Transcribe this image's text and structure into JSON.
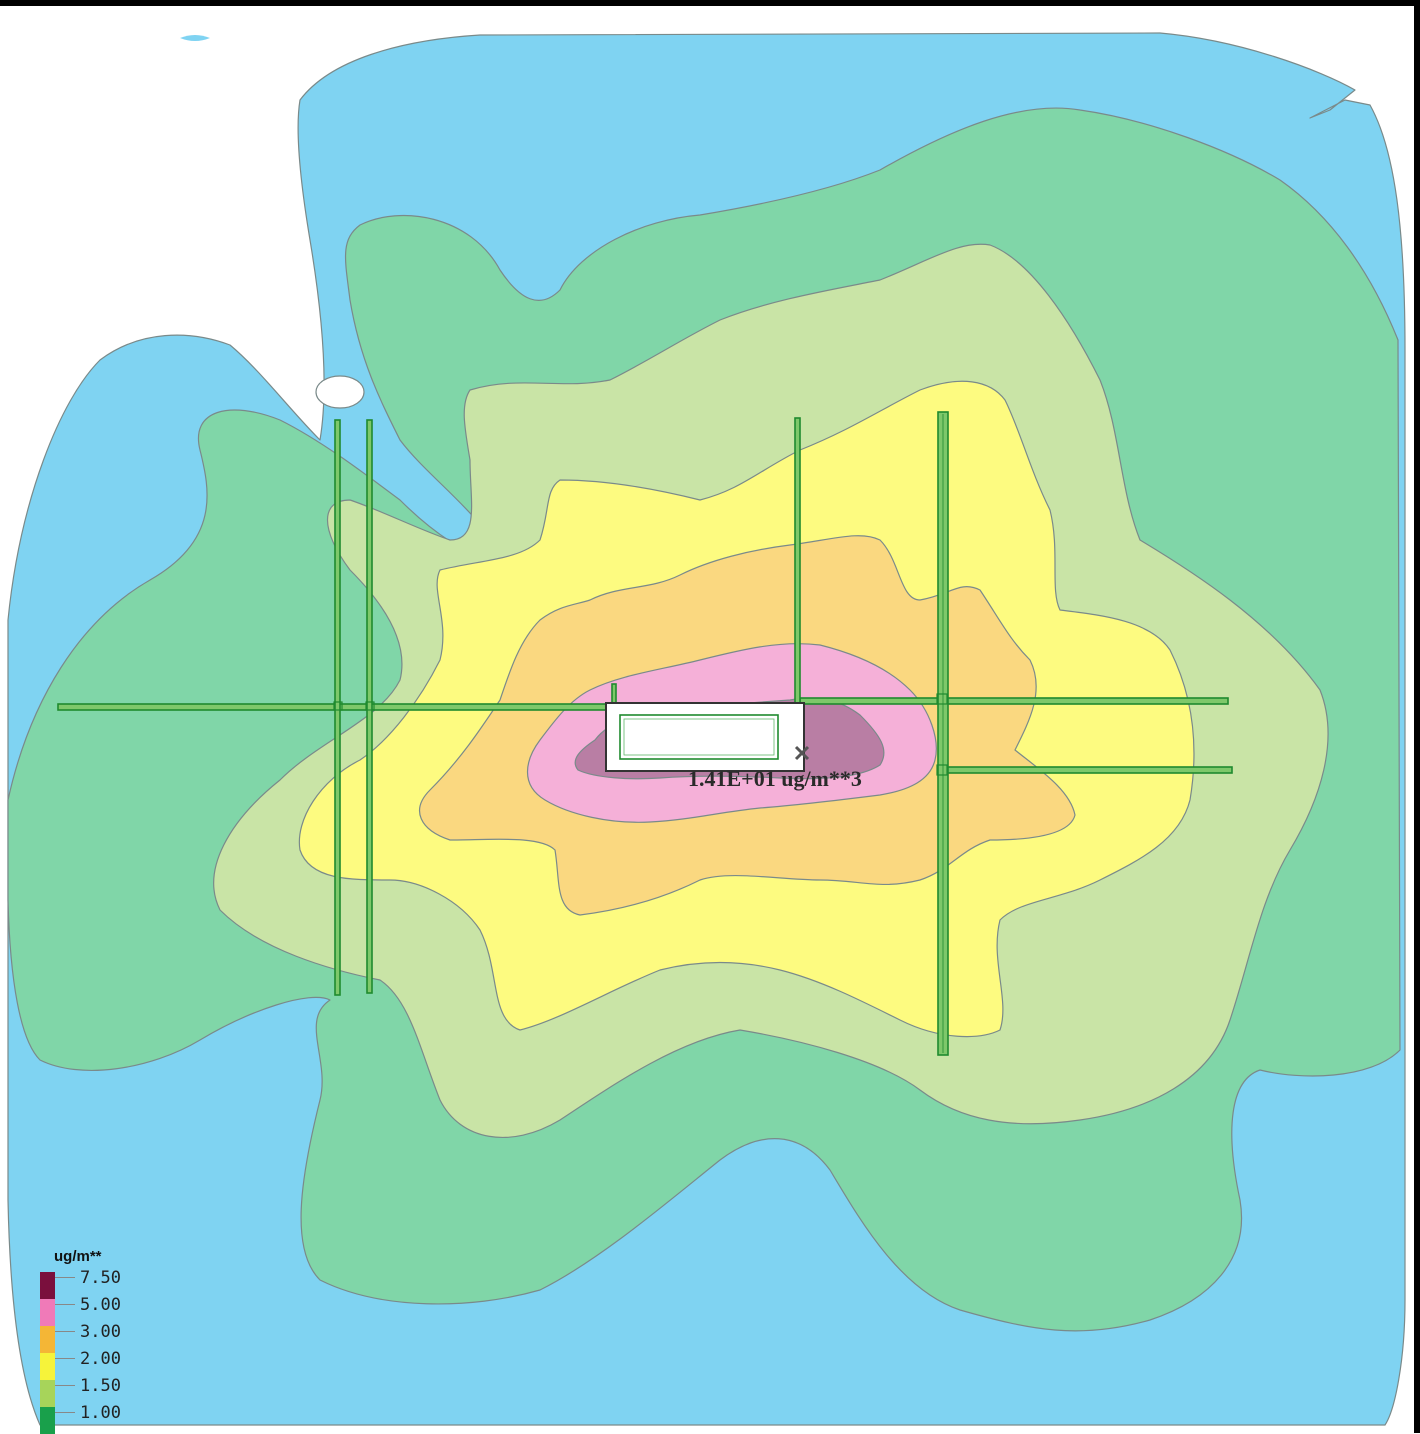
{
  "peak_label": "1.41E+01 ug/m**3",
  "legend": {
    "title": "ug/m**",
    "entries": [
      {
        "value": "7.50",
        "color": "#7a0f3d"
      },
      {
        "value": "5.00",
        "color": "#f07ab8"
      },
      {
        "value": "3.00",
        "color": "#f4b636"
      },
      {
        "value": "2.00",
        "color": "#f6f33a"
      },
      {
        "value": "1.50",
        "color": "#a7d45a"
      },
      {
        "value": "1.00",
        "color": "#19a04b"
      }
    ]
  },
  "fill_colors": {
    "lt_1": "#7fd3f2",
    "band_1_00": "#80d6a8",
    "band_1_50": "#c9e4a6",
    "band_2_00": "#fdfb80",
    "band_3_00": "#fad880",
    "band_5_00": "#f5b0d8",
    "band_7_50": "#b97ea4",
    "road": "#7ec86a"
  }
}
